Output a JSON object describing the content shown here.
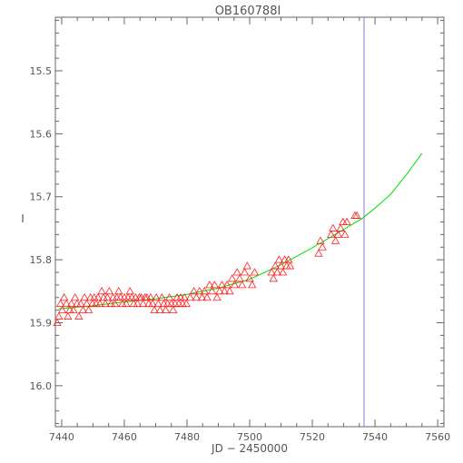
{
  "chart_data": {
    "type": "scatter",
    "title": "OB160788I",
    "xlabel": "JD − 2450000",
    "ylabel": "I",
    "xlim": [
      7438,
      7562
    ],
    "ylim": [
      16.065,
      15.415
    ],
    "y_inverted": true,
    "x_ticks": [
      7440,
      7460,
      7480,
      7500,
      7520,
      7540,
      7560
    ],
    "y_ticks": [
      15.5,
      15.6,
      15.7,
      15.8,
      15.9,
      16.0
    ],
    "x_tick_labels": [
      "7440",
      "7460",
      "7480",
      "7500",
      "7520",
      "7540",
      "7560"
    ],
    "y_tick_labels": [
      "15.5",
      "15.6",
      "15.7",
      "15.8",
      "15.9",
      "16.0"
    ],
    "x_minor_step": 5,
    "y_minor_step": 0.02,
    "vertical_line": {
      "x": 7536.5,
      "color": "#8080d0"
    },
    "series": [
      {
        "marker": "triangle-open",
        "color": "#ff2020",
        "points": [
          [
            7438.6,
            15.9
          ],
          [
            7439.1,
            15.89
          ],
          [
            7439.6,
            15.87
          ],
          [
            7440.2,
            15.88
          ],
          [
            7440.8,
            15.86
          ],
          [
            7441.5,
            15.87
          ],
          [
            7442.0,
            15.89
          ],
          [
            7442.6,
            15.88
          ],
          [
            7443.1,
            15.87
          ],
          [
            7443.8,
            15.88
          ],
          [
            7444.3,
            15.86
          ],
          [
            7444.9,
            15.87
          ],
          [
            7445.5,
            15.89
          ],
          [
            7446.1,
            15.87
          ],
          [
            7446.8,
            15.88
          ],
          [
            7447.3,
            15.86
          ],
          [
            7448.0,
            15.87
          ],
          [
            7448.6,
            15.88
          ],
          [
            7449.2,
            15.86
          ],
          [
            7449.8,
            15.87
          ],
          [
            7450.4,
            15.86
          ],
          [
            7451.0,
            15.87
          ],
          [
            7451.6,
            15.86
          ],
          [
            7452.2,
            15.87
          ],
          [
            7452.8,
            15.85
          ],
          [
            7453.4,
            15.86
          ],
          [
            7454.0,
            15.87
          ],
          [
            7454.6,
            15.86
          ],
          [
            7455.2,
            15.85
          ],
          [
            7455.8,
            15.87
          ],
          [
            7456.4,
            15.86
          ],
          [
            7457.0,
            15.87
          ],
          [
            7457.6,
            15.86
          ],
          [
            7458.2,
            15.85
          ],
          [
            7458.8,
            15.86
          ],
          [
            7459.4,
            15.87
          ],
          [
            7460.0,
            15.86
          ],
          [
            7460.6,
            15.87
          ],
          [
            7461.2,
            15.86
          ],
          [
            7461.8,
            15.85
          ],
          [
            7462.4,
            15.86
          ],
          [
            7463.0,
            15.87
          ],
          [
            7463.6,
            15.86
          ],
          [
            7464.2,
            15.87
          ],
          [
            7464.8,
            15.86
          ],
          [
            7465.4,
            15.86
          ],
          [
            7466.0,
            15.87
          ],
          [
            7466.6,
            15.86
          ],
          [
            7467.2,
            15.86
          ],
          [
            7467.8,
            15.87
          ],
          [
            7468.4,
            15.86
          ],
          [
            7469.0,
            15.87
          ],
          [
            7469.6,
            15.88
          ],
          [
            7470.2,
            15.86
          ],
          [
            7470.8,
            15.87
          ],
          [
            7471.4,
            15.88
          ],
          [
            7472.0,
            15.86
          ],
          [
            7472.6,
            15.87
          ],
          [
            7473.2,
            15.88
          ],
          [
            7473.8,
            15.87
          ],
          [
            7474.4,
            15.86
          ],
          [
            7475.0,
            15.87
          ],
          [
            7475.6,
            15.88
          ],
          [
            7476.2,
            15.87
          ],
          [
            7476.8,
            15.86
          ],
          [
            7477.4,
            15.87
          ],
          [
            7478.0,
            15.86
          ],
          [
            7478.6,
            15.87
          ],
          [
            7479.2,
            15.86
          ],
          [
            7479.8,
            15.87
          ],
          [
            7481.0,
            15.86
          ],
          [
            7482.2,
            15.85
          ],
          [
            7483.0,
            15.86
          ],
          [
            7484.0,
            15.85
          ],
          [
            7484.8,
            15.86
          ],
          [
            7485.6,
            15.85
          ],
          [
            7486.4,
            15.86
          ],
          [
            7487.2,
            15.84
          ],
          [
            7488.0,
            15.85
          ],
          [
            7488.8,
            15.84
          ],
          [
            7489.6,
            15.86
          ],
          [
            7490.4,
            15.85
          ],
          [
            7491.2,
            15.84
          ],
          [
            7492.0,
            15.85
          ],
          [
            7492.8,
            15.84
          ],
          [
            7493.6,
            15.85
          ],
          [
            7494.4,
            15.83
          ],
          [
            7495.2,
            15.84
          ],
          [
            7496.0,
            15.82
          ],
          [
            7496.8,
            15.83
          ],
          [
            7497.6,
            15.84
          ],
          [
            7498.4,
            15.82
          ],
          [
            7499.2,
            15.81
          ],
          [
            7500.0,
            15.83
          ],
          [
            7500.8,
            15.84
          ],
          [
            7501.6,
            15.82
          ],
          [
            7507.0,
            15.82
          ],
          [
            7507.6,
            15.83
          ],
          [
            7508.2,
            15.81
          ],
          [
            7508.8,
            15.82
          ],
          [
            7509.4,
            15.8
          ],
          [
            7510.0,
            15.81
          ],
          [
            7510.6,
            15.82
          ],
          [
            7511.2,
            15.8
          ],
          [
            7511.8,
            15.81
          ],
          [
            7512.4,
            15.8
          ],
          [
            7512.9,
            15.81
          ],
          [
            7522.0,
            15.79
          ],
          [
            7522.6,
            15.77
          ],
          [
            7523.2,
            15.78
          ],
          [
            7526.0,
            15.76
          ],
          [
            7526.6,
            15.75
          ],
          [
            7527.4,
            15.77
          ],
          [
            7528.2,
            15.76
          ],
          [
            7529.0,
            15.75
          ],
          [
            7529.8,
            15.74
          ],
          [
            7530.4,
            15.76
          ],
          [
            7531.0,
            15.74
          ],
          [
            7533.6,
            15.73
          ],
          [
            7534.2,
            15.73
          ]
        ]
      },
      {
        "marker": "line",
        "color": "#00e000",
        "points": [
          [
            7439.0,
            15.878
          ],
          [
            7450.0,
            15.873
          ],
          [
            7460.0,
            15.867
          ],
          [
            7470.0,
            15.862
          ],
          [
            7480.0,
            15.855
          ],
          [
            7490.0,
            15.845
          ],
          [
            7500.0,
            15.831
          ],
          [
            7510.0,
            15.808
          ],
          [
            7520.0,
            15.781
          ],
          [
            7530.0,
            15.752
          ],
          [
            7536.0,
            15.734
          ],
          [
            7540.0,
            15.718
          ],
          [
            7545.0,
            15.696
          ],
          [
            7550.0,
            15.665
          ],
          [
            7555.0,
            15.631
          ]
        ]
      }
    ]
  }
}
